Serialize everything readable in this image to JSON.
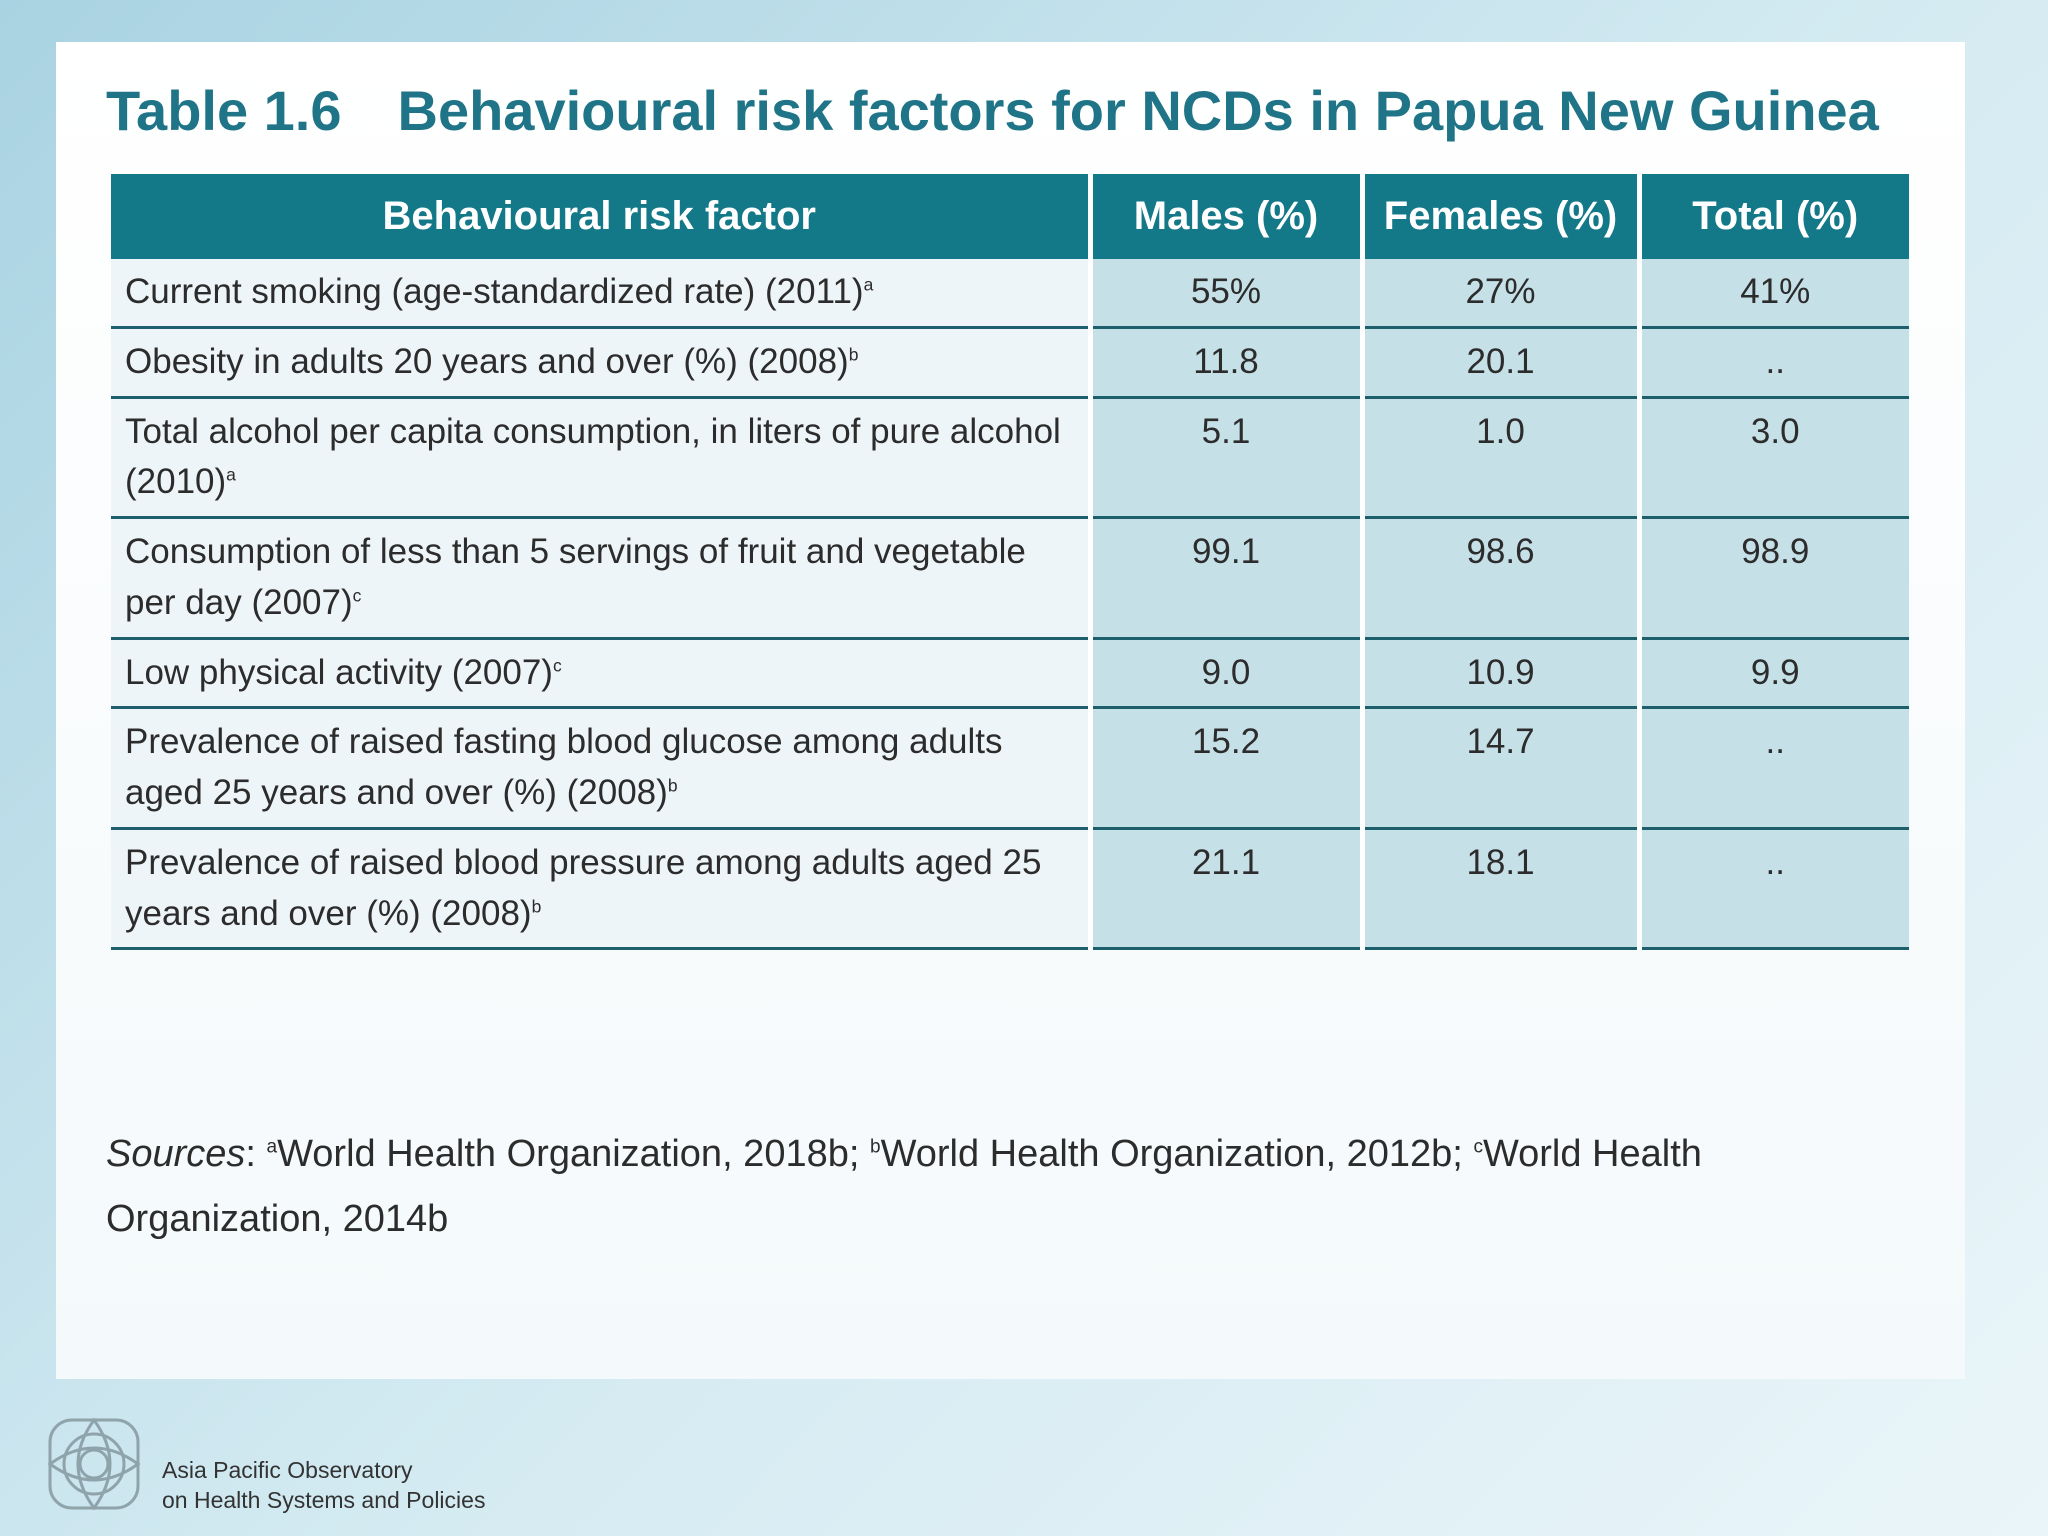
{
  "header": {
    "label": "Table 1.6",
    "title": "Behavioural risk factors for NCDs in Papua New Guinea"
  },
  "table": {
    "columns": [
      "Behavioural risk factor",
      "Males (%)",
      "Females (%)",
      "Total (%)"
    ],
    "rows": [
      {
        "factor": "Current smoking (age-standardized rate) (2011)",
        "note": "a",
        "values": [
          "55%",
          "27%",
          "41%"
        ]
      },
      {
        "factor": "Obesity in adults 20 years and over (%) (2008)",
        "note": "b",
        "values": [
          "11.8",
          "20.1",
          ".."
        ]
      },
      {
        "factor": "Total alcohol per capita consumption, in liters of pure alcohol (2010)",
        "note": "a",
        "values": [
          "5.1",
          "1.0",
          "3.0"
        ]
      },
      {
        "factor": "Consumption of less than 5 servings of fruit and vegetable per day (2007)",
        "note": "c",
        "values": [
          "99.1",
          "98.6",
          "98.9"
        ]
      },
      {
        "factor": "Low physical activity (2007)",
        "note": "c",
        "values": [
          "9.0",
          "10.9",
          "9.9"
        ]
      },
      {
        "factor": "Prevalence of raised fasting blood glucose among adults aged 25 years and over (%) (2008)",
        "note": "b",
        "values": [
          "15.2",
          "14.7",
          ".."
        ]
      },
      {
        "factor": "Prevalence of raised blood pressure among adults aged 25 years and over (%) (2008)",
        "note": "b",
        "values": [
          "21.1",
          "18.1",
          ".."
        ]
      }
    ]
  },
  "sources": {
    "label": "Sources",
    "separator": ":",
    "items": [
      {
        "note": "a",
        "text": "World Health Organization, 2018b;"
      },
      {
        "note": "b",
        "text": "World Health Organization, 2012b;"
      },
      {
        "note": "c",
        "text": "World Health Organization, 2014b"
      }
    ]
  },
  "footer": {
    "line1": "Asia Pacific Observatory",
    "line2": "on Health Systems and Policies"
  }
}
